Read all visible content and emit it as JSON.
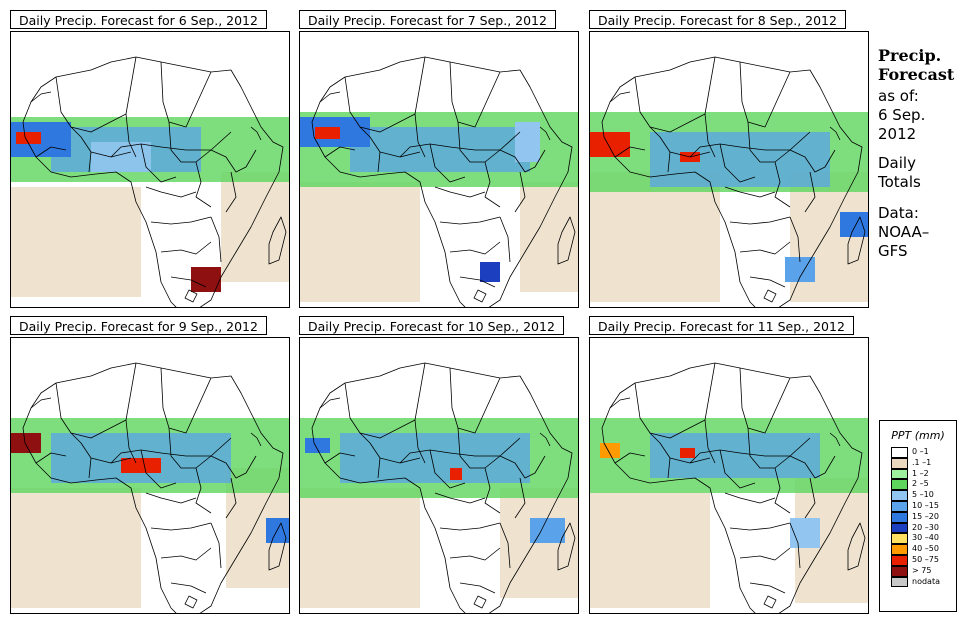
{
  "panels": [
    {
      "title": "Daily Precip. Forecast for  6 Sep., 2012"
    },
    {
      "title": "Daily Precip. Forecast for  7 Sep., 2012"
    },
    {
      "title": "Daily Precip. Forecast for  8 Sep., 2012"
    },
    {
      "title": "Daily Precip. Forecast for  9 Sep., 2012"
    },
    {
      "title": "Daily Precip. Forecast for  10 Sep., 2012"
    },
    {
      "title": "Daily Precip. Forecast for  11 Sep., 2012"
    }
  ],
  "sidebar": {
    "heading_line1": "Precip.",
    "heading_line2": "Forecast",
    "asof": "as of:",
    "date_line1": "6 Sep.",
    "date_line2": "2012",
    "totals_line1": "Daily",
    "totals_line2": "Totals",
    "data_line1": "Data:",
    "data_line2": "NOAA–",
    "data_line3": "GFS"
  },
  "legend": {
    "title": "PPT (mm)",
    "items": [
      {
        "label": "0 –1",
        "color": "#ffffff"
      },
      {
        "label": ".1 –1",
        "color": "#ead9c0"
      },
      {
        "label": "1 –2",
        "color": "#9ef09e"
      },
      {
        "label": "2 –5",
        "color": "#5ed65e"
      },
      {
        "label": "5 –10",
        "color": "#92c6f0"
      },
      {
        "label": "10 –15",
        "color": "#5aa2ea"
      },
      {
        "label": "15 –20",
        "color": "#2f78e0"
      },
      {
        "label": "20 –30",
        "color": "#1c3fbf"
      },
      {
        "label": "30 –40",
        "color": "#ffe060"
      },
      {
        "label": "40 –50",
        "color": "#ff9a00"
      },
      {
        "label": "50 –75",
        "color": "#e82000"
      },
      {
        "label": "> 75",
        "color": "#8e1010"
      },
      {
        "label": "nodata",
        "color": "#c8c8c8"
      }
    ]
  }
}
